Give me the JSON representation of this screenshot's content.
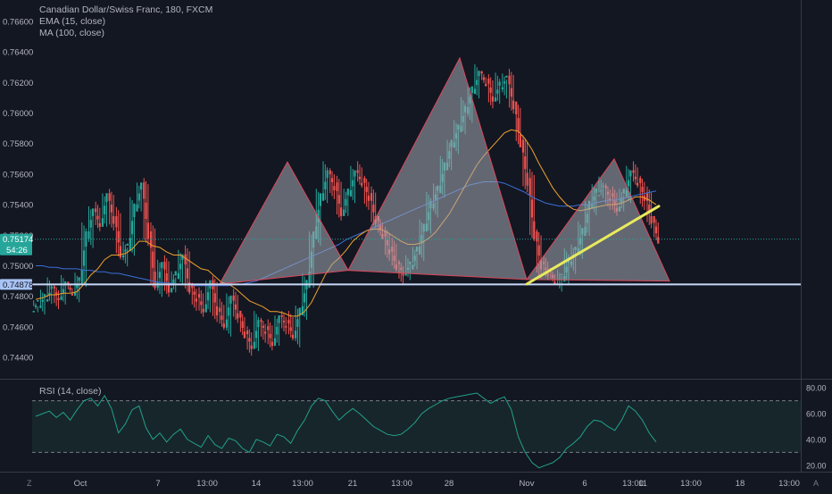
{
  "chart": {
    "symbol_line": "Canadian Dollar/Swiss Franc, 180, FXCM",
    "indicators": [
      "EMA (15, close)",
      "MA (100, close)"
    ],
    "rsi_label": "RSI (14, close)",
    "corner_left": "Z",
    "corner_right": "A"
  },
  "chart_data": {
    "type": "candlestick",
    "price_axis": {
      "ticks": [
        "0.76600",
        "0.76400",
        "0.76200",
        "0.76000",
        "0.75800",
        "0.75600",
        "0.75400",
        "0.75200",
        "0.75000",
        "0.74800",
        "0.74600",
        "0.74400"
      ],
      "ylim": [
        0.7426,
        0.7674
      ]
    },
    "price_badges": [
      {
        "text": "0.75174",
        "value": 0.75174,
        "color": "#26a69a",
        "sub": "54:26"
      },
      {
        "text": "0.74878",
        "value": 0.74878,
        "color": "#a8c3f5"
      }
    ],
    "rsi_axis": {
      "ticks": [
        "80.00",
        "60.00",
        "40.00",
        "20.00"
      ],
      "ylim": [
        15,
        85
      ],
      "bands": [
        70,
        30
      ]
    },
    "time_axis": [
      "Oct",
      "7",
      "13:00",
      "14",
      "13:00",
      "21",
      "13:00",
      "28",
      "Nov",
      "6",
      "13:00",
      "11",
      "13:00",
      "18",
      "13:00"
    ],
    "support_level": 0.74878,
    "pattern": {
      "name": "triple top / head and shoulders",
      "shoulder_left": [
        [
          0.7488,
          0.7488
        ],
        [
          0.7568,
          0.7568
        ],
        [
          0.7497,
          0.7497
        ]
      ],
      "head_peak": 0.7636,
      "shoulder_right_peak": 0.757,
      "neckline_low": 0.7491,
      "neckline_end": 0.749
    },
    "trendline": {
      "from": 0.7488,
      "to": 0.7539,
      "color": "#e8ea5c"
    },
    "close_points": [
      0.7475,
      0.7479,
      0.7484,
      0.748,
      0.7487,
      0.7483,
      0.749,
      0.752,
      0.7535,
      0.7528,
      0.7545,
      0.753,
      0.7508,
      0.7512,
      0.7538,
      0.7552,
      0.752,
      0.7488,
      0.75,
      0.7485,
      0.7494,
      0.7505,
      0.7485,
      0.7479,
      0.7472,
      0.7488,
      0.747,
      0.7462,
      0.7478,
      0.7468,
      0.7455,
      0.7448,
      0.7462,
      0.7458,
      0.745,
      0.7465,
      0.7462,
      0.7455,
      0.747,
      0.7488,
      0.752,
      0.7545,
      0.756,
      0.7552,
      0.7535,
      0.7548,
      0.756,
      0.7555,
      0.7545,
      0.753,
      0.752,
      0.751,
      0.75,
      0.7496,
      0.75,
      0.751,
      0.7525,
      0.754,
      0.755,
      0.7565,
      0.758,
      0.759,
      0.7602,
      0.7615,
      0.7625,
      0.762,
      0.761,
      0.7618,
      0.7622,
      0.7605,
      0.758,
      0.7555,
      0.752,
      0.75,
      0.7496,
      0.749,
      0.7492,
      0.7503,
      0.751,
      0.7522,
      0.754,
      0.7548,
      0.755,
      0.7545,
      0.7538,
      0.7548,
      0.756,
      0.7555,
      0.7545,
      0.753,
      0.7517
    ],
    "ema15": [
      0.7478,
      0.7479,
      0.7481,
      0.7481,
      0.7482,
      0.7482,
      0.7483,
      0.7488,
      0.7494,
      0.7498,
      0.7504,
      0.7507,
      0.7507,
      0.7508,
      0.7511,
      0.7516,
      0.7516,
      0.7513,
      0.7512,
      0.7509,
      0.7507,
      0.7507,
      0.7504,
      0.7501,
      0.7498,
      0.7497,
      0.7493,
      0.7489,
      0.7488,
      0.7485,
      0.7481,
      0.7477,
      0.7475,
      0.7473,
      0.747,
      0.747,
      0.7469,
      0.7467,
      0.7467,
      0.747,
      0.7476,
      0.7485,
      0.7494,
      0.7501,
      0.7505,
      0.751,
      0.7516,
      0.752,
      0.7523,
      0.7524,
      0.7524,
      0.7522,
      0.7519,
      0.7516,
      0.7514,
      0.7514,
      0.7515,
      0.7518,
      0.7522,
      0.7528,
      0.7534,
      0.7542,
      0.755,
      0.7558,
      0.7566,
      0.7572,
      0.7577,
      0.7582,
      0.7587,
      0.7589,
      0.7588,
      0.7583,
      0.7576,
      0.7567,
      0.7559,
      0.7551,
      0.7545,
      0.754,
      0.7537,
      0.7536,
      0.7537,
      0.7538,
      0.7539,
      0.754,
      0.754,
      0.7541,
      0.7543,
      0.7545,
      0.7545,
      0.7543,
      0.754
    ],
    "ma100": [
      0.75,
      0.75,
      0.7499,
      0.7499,
      0.7498,
      0.7498,
      0.7498,
      0.7497,
      0.7497,
      0.7496,
      0.7496,
      0.7495,
      0.7495,
      0.7494,
      0.7493,
      0.7492,
      0.7491,
      0.749,
      0.7489,
      0.7489,
      0.7488,
      0.7488,
      0.7488,
      0.7487,
      0.7487,
      0.7487,
      0.7487,
      0.7487,
      0.7487,
      0.7488,
      0.7488,
      0.7489,
      0.749,
      0.7492,
      0.7494,
      0.7496,
      0.7498,
      0.75,
      0.7502,
      0.7504,
      0.7506,
      0.7508,
      0.751,
      0.7512,
      0.7514,
      0.7517,
      0.7519,
      0.7521,
      0.7523,
      0.7525,
      0.7527,
      0.7529,
      0.7531,
      0.7533,
      0.7535,
      0.7537,
      0.7539,
      0.7541,
      0.7543,
      0.7545,
      0.7547,
      0.7549,
      0.7551,
      0.7553,
      0.7554,
      0.7555,
      0.7555,
      0.7555,
      0.7554,
      0.7552,
      0.755,
      0.7548,
      0.7545,
      0.7543,
      0.7541,
      0.754,
      0.7539,
      0.7539,
      0.7539,
      0.754,
      0.754,
      0.7541,
      0.7542,
      0.7543,
      0.7543,
      0.7544,
      0.7545,
      0.7546,
      0.7547,
      0.7548,
      0.7549
    ],
    "rsi": [
      58,
      60,
      62,
      57,
      61,
      55,
      63,
      70,
      72,
      66,
      74,
      64,
      45,
      52,
      63,
      66,
      49,
      40,
      45,
      38,
      44,
      48,
      40,
      37,
      34,
      43,
      36,
      33,
      41,
      39,
      33,
      30,
      40,
      38,
      35,
      44,
      42,
      37,
      47,
      55,
      66,
      72,
      70,
      62,
      55,
      60,
      64,
      60,
      55,
      50,
      47,
      44,
      43,
      44,
      48,
      53,
      60,
      64,
      67,
      70,
      72,
      73,
      74,
      75,
      76,
      72,
      68,
      71,
      73,
      63,
      42,
      30,
      22,
      18,
      20,
      22,
      26,
      33,
      37,
      42,
      50,
      55,
      54,
      50,
      47,
      55,
      66,
      62,
      55,
      45,
      38
    ],
    "colors": {
      "background": "#131722",
      "up": "#26a69a",
      "down": "#ef5350",
      "ema": "#f0a12b",
      "ma": "#3b6fd6",
      "rsi": "#22a08c",
      "pattern_fill": "#a5a9b4",
      "pattern_stroke": "#d9485b",
      "trend": "#e8ea5c",
      "support": "#c8d8f8"
    }
  }
}
